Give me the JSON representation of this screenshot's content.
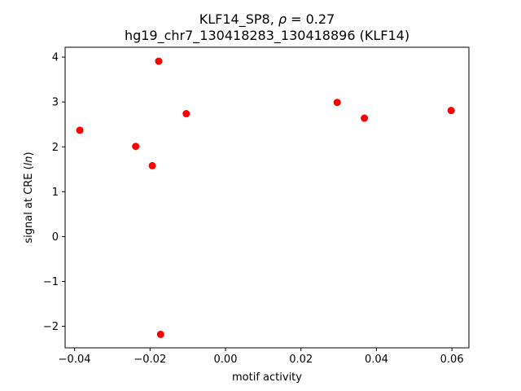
{
  "chart_data": {
    "type": "scatter",
    "title_line1_prefix": "KLF14_SP8, ",
    "title_line1_rho": "ρ",
    "title_line1_value": " = 0.27",
    "title_line2": "hg19_chr7_130418283_130418896 (KLF14)",
    "xlabel": "motif activity",
    "ylabel_prefix": "signal at CRE (",
    "ylabel_italic": "ln",
    "ylabel_suffix": ")",
    "xlim": [
      -0.0425,
      0.0645
    ],
    "ylim": [
      -2.48,
      4.22
    ],
    "xticks": [
      -0.04,
      -0.02,
      0.0,
      0.02,
      0.04,
      0.06
    ],
    "xtick_labels": [
      "−0.04",
      "−0.02",
      "0.00",
      "0.02",
      "0.04",
      "0.06"
    ],
    "yticks": [
      -2,
      -1,
      0,
      1,
      2,
      3,
      4
    ],
    "ytick_labels": [
      "−2",
      "−1",
      "0",
      "1",
      "2",
      "3",
      "4"
    ],
    "grid": false,
    "marker_color": "#ff0000",
    "points": [
      {
        "x": -0.0386,
        "y": 2.37
      },
      {
        "x": -0.0238,
        "y": 2.01
      },
      {
        "x": -0.0194,
        "y": 1.58
      },
      {
        "x": -0.0177,
        "y": 3.91
      },
      {
        "x": -0.0172,
        "y": -2.18
      },
      {
        "x": -0.0104,
        "y": 2.74
      },
      {
        "x": 0.0296,
        "y": 2.99
      },
      {
        "x": 0.0368,
        "y": 2.64
      },
      {
        "x": 0.0598,
        "y": 2.81
      }
    ]
  }
}
